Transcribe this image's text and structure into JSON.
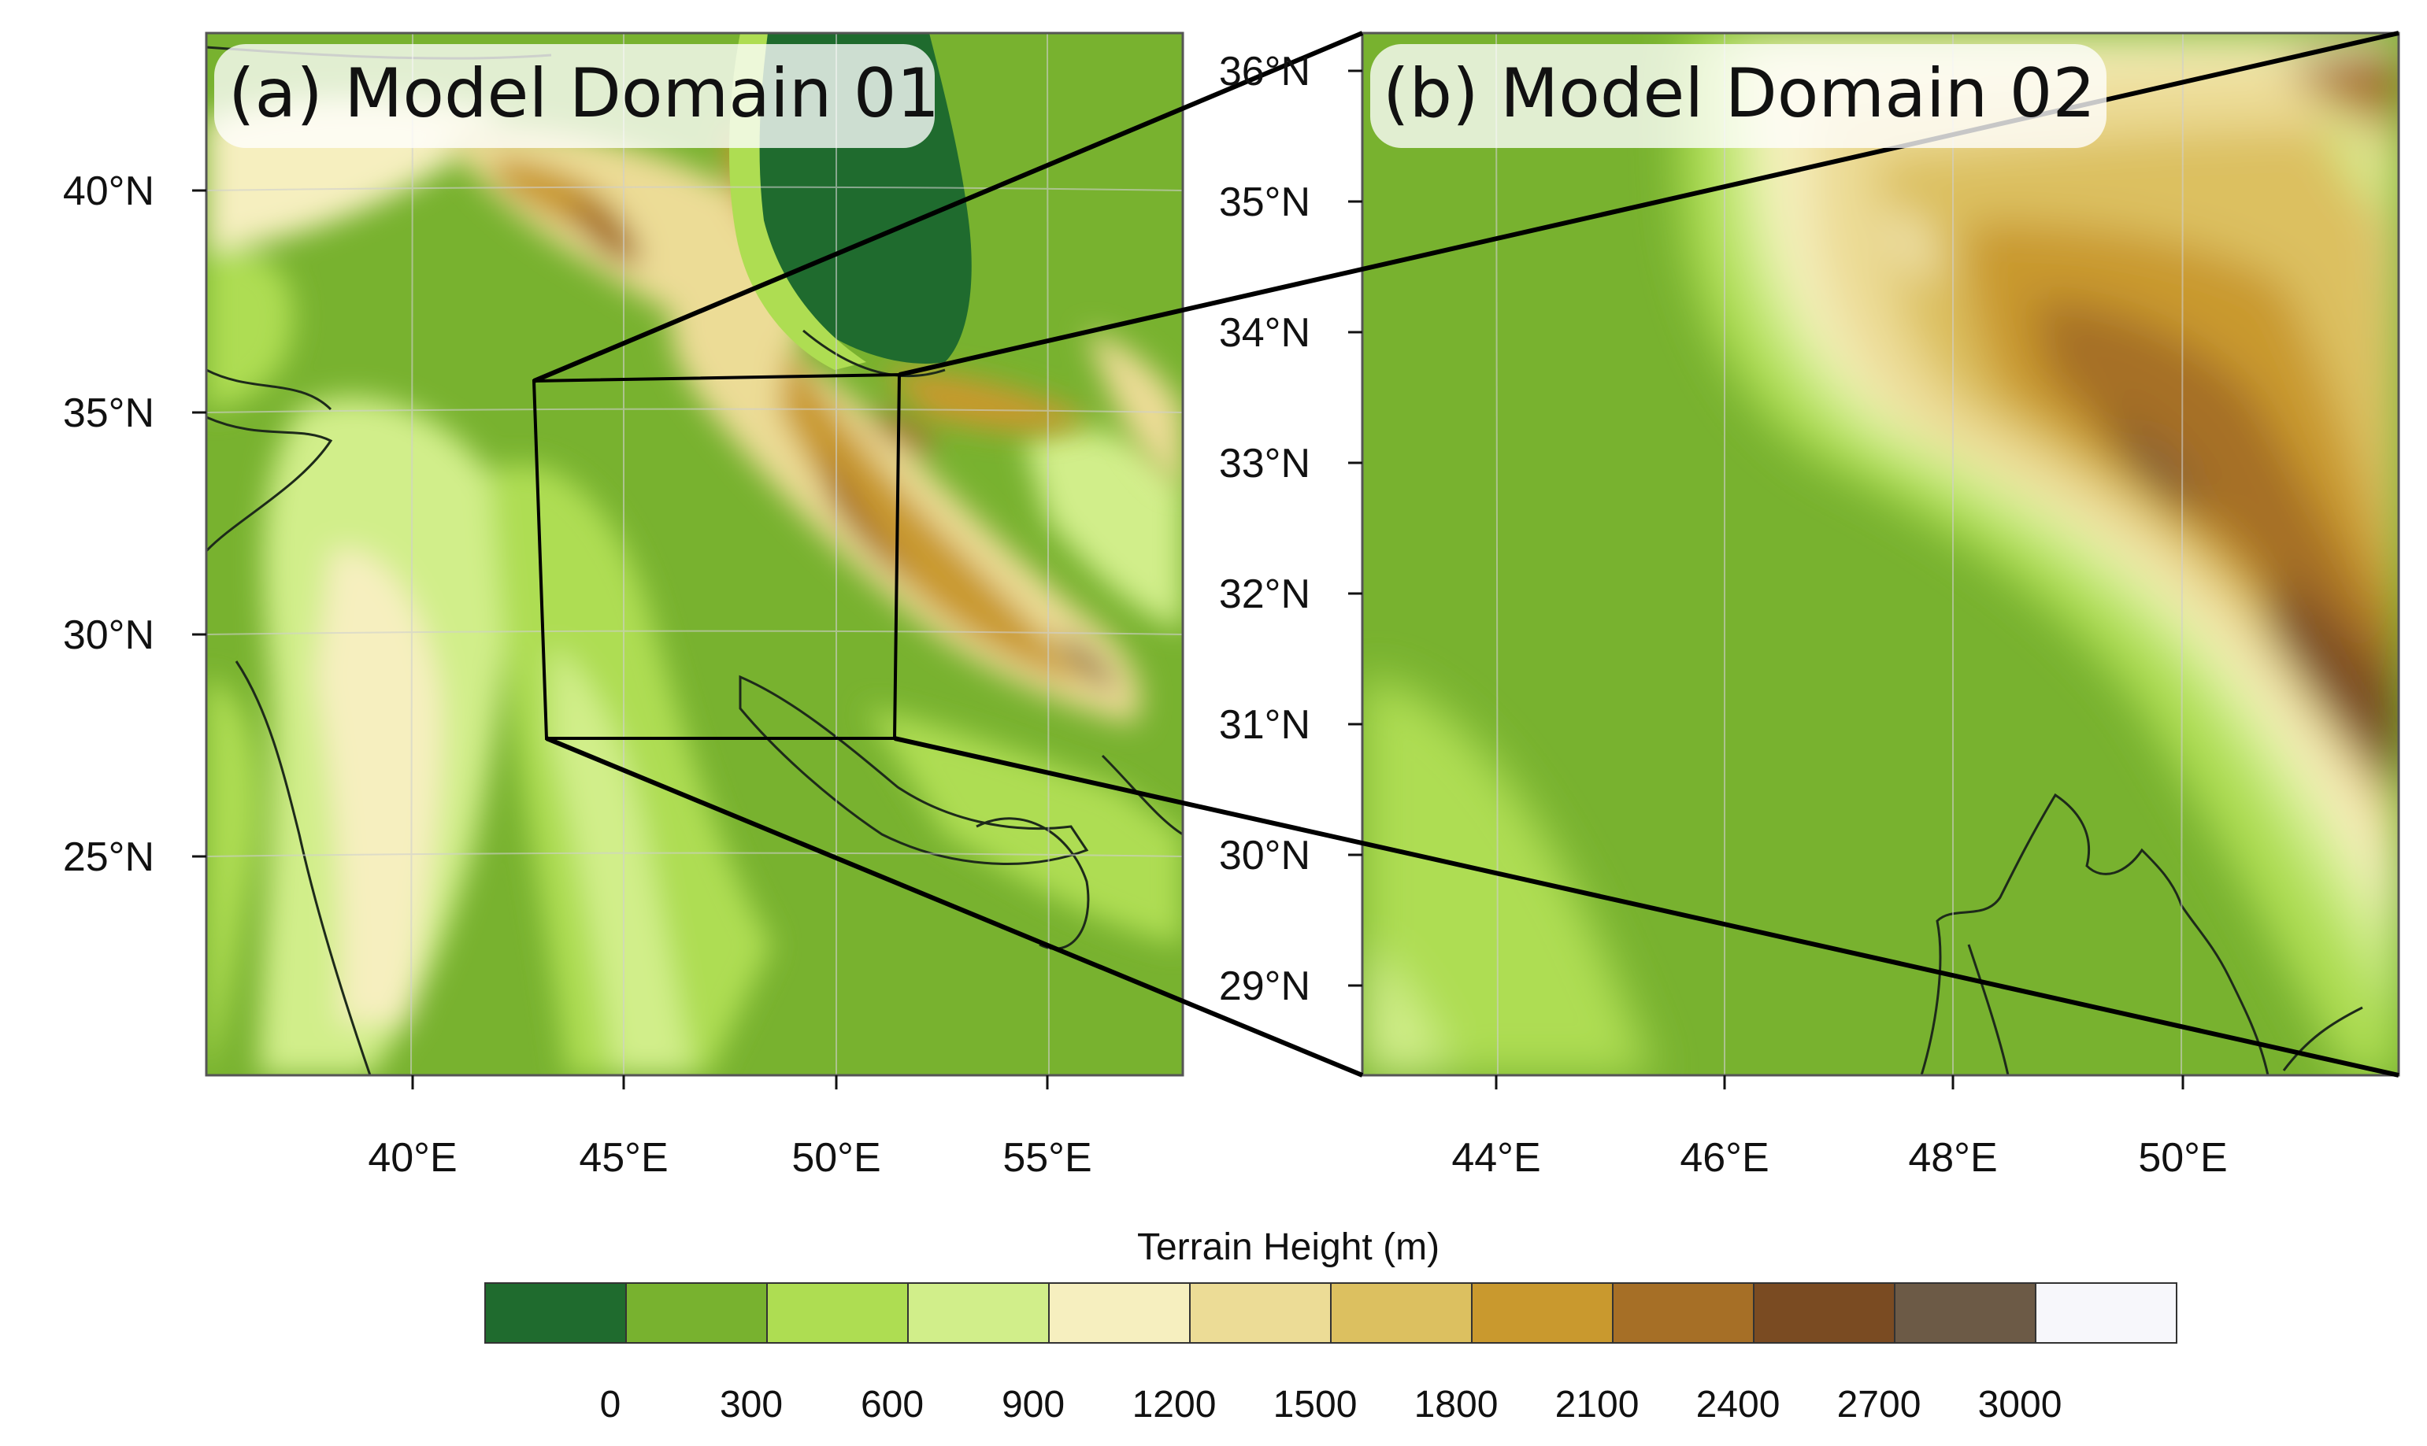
{
  "panels": [
    {
      "id": "domain01",
      "title": "(a) Model Domain 01",
      "lat_ticks": [
        "25°N",
        "30°N",
        "35°N",
        "40°N"
      ],
      "lon_ticks": [
        "40°E",
        "45°E",
        "50°E",
        "55°E"
      ]
    },
    {
      "id": "domain02",
      "title": "(b) Model Domain 02",
      "lat_ticks": [
        "29°N",
        "30°N",
        "31°N",
        "32°N",
        "33°N",
        "34°N",
        "35°N",
        "36°N"
      ],
      "lon_ticks": [
        "44°E",
        "46°E",
        "48°E",
        "50°E"
      ]
    }
  ],
  "colorbar": {
    "title": "Terrain Height  (m)",
    "labels": [
      "0",
      "300",
      "600",
      "900",
      "1200",
      "1500",
      "1800",
      "2100",
      "2400",
      "2700",
      "3000"
    ],
    "colors": [
      "#1f6b2e",
      "#78b22f",
      "#aedd52",
      "#d1ee8a",
      "#f6efbf",
      "#ecdc96",
      "#dcc060",
      "#c9992e",
      "#a66f26",
      "#7a4b22",
      "#6c5a46",
      "#f7f7fb"
    ]
  }
}
